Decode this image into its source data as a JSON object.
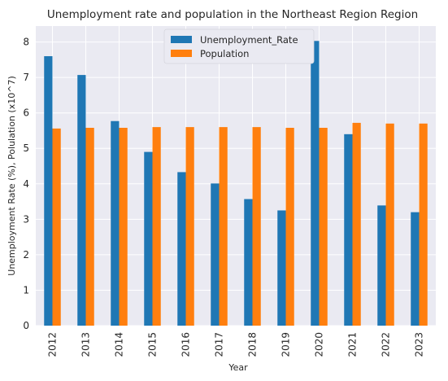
{
  "chart_data": {
    "type": "bar",
    "title": "Unemployment rate and population in the Northeast Region Region",
    "xlabel": "Year",
    "ylabel": "Unemployment Rate (%), Polulation (x10^7)",
    "categories": [
      "2012",
      "2013",
      "2014",
      "2015",
      "2016",
      "2017",
      "2018",
      "2019",
      "2020",
      "2021",
      "2022",
      "2023"
    ],
    "series": [
      {
        "name": "Unemployment_Rate",
        "color": "#1f77b4",
        "values": [
          7.6,
          7.07,
          5.77,
          4.9,
          4.33,
          4.01,
          3.57,
          3.25,
          8.03,
          5.4,
          3.39,
          3.2
        ]
      },
      {
        "name": "Population",
        "color": "#ff7f0e",
        "values": [
          5.56,
          5.58,
          5.58,
          5.6,
          5.6,
          5.6,
          5.6,
          5.58,
          5.58,
          5.72,
          5.7,
          5.7
        ]
      }
    ],
    "ylim": [
      0,
      8.45
    ],
    "yticks": [
      0,
      1,
      2,
      3,
      4,
      5,
      6,
      7,
      8
    ],
    "grid": true,
    "legend_position": "top-center",
    "plot_background": "#eaeaf2",
    "grid_color": "#ffffff"
  }
}
